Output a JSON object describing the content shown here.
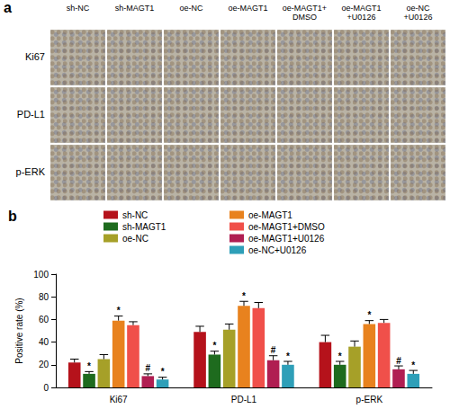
{
  "image_panel": {
    "label": "a",
    "columns": [
      "sh-NC",
      "sh-MAGT1",
      "oe-NC",
      "oe-MAGT1",
      "oe-MAGT1+\nDMSO",
      "oe-MAGT1\n+U0126",
      "oe-NC\n+U0126"
    ],
    "rows": [
      "Ki67",
      "PD-L1",
      "p-ERK"
    ]
  },
  "chart_data": {
    "type": "bar",
    "panel_label": "b",
    "categories": [
      "Ki67",
      "PD-L1",
      "p-ERK"
    ],
    "y_label": "Positive rate (%)",
    "ylim": [
      0,
      100
    ],
    "yticks": [
      0,
      20,
      40,
      60,
      80,
      100
    ],
    "grid": false,
    "legend": "top",
    "series": [
      {
        "name": "sh-NC",
        "color": "#b5121b",
        "values": [
          22,
          49,
          40
        ],
        "errors": [
          3,
          5,
          6
        ],
        "annotations": [
          null,
          null,
          null
        ]
      },
      {
        "name": "sh-MAGT1",
        "color": "#1e6b1e",
        "values": [
          12,
          29,
          20
        ],
        "errors": [
          2,
          3,
          3
        ],
        "annotations": [
          "*",
          "*",
          "*"
        ]
      },
      {
        "name": "oe-NC",
        "color": "#a6a028",
        "values": [
          25,
          51,
          36
        ],
        "errors": [
          4,
          5,
          5
        ],
        "annotations": [
          null,
          null,
          null
        ]
      },
      {
        "name": "oe-MAGT1",
        "color": "#e8821e",
        "values": [
          59,
          72,
          56
        ],
        "errors": [
          4,
          4,
          3
        ],
        "annotations": [
          "*",
          "*",
          "*"
        ]
      },
      {
        "name": "oe-MAGT1+DMSO",
        "color": "#f0504a",
        "values": [
          55,
          70,
          57
        ],
        "errors": [
          3,
          5,
          3
        ],
        "annotations": [
          null,
          null,
          null
        ]
      },
      {
        "name": "oe-MAGT1+U0126",
        "color": "#b01e52",
        "values": [
          10,
          24,
          16
        ],
        "errors": [
          2,
          4,
          3
        ],
        "annotations": [
          "#",
          "#",
          "#"
        ]
      },
      {
        "name": "oe-NC+U0126",
        "color": "#2e9fb8",
        "values": [
          7,
          20,
          12
        ],
        "errors": [
          2,
          3,
          3
        ],
        "annotations": [
          "*",
          "*",
          "*"
        ]
      }
    ]
  }
}
